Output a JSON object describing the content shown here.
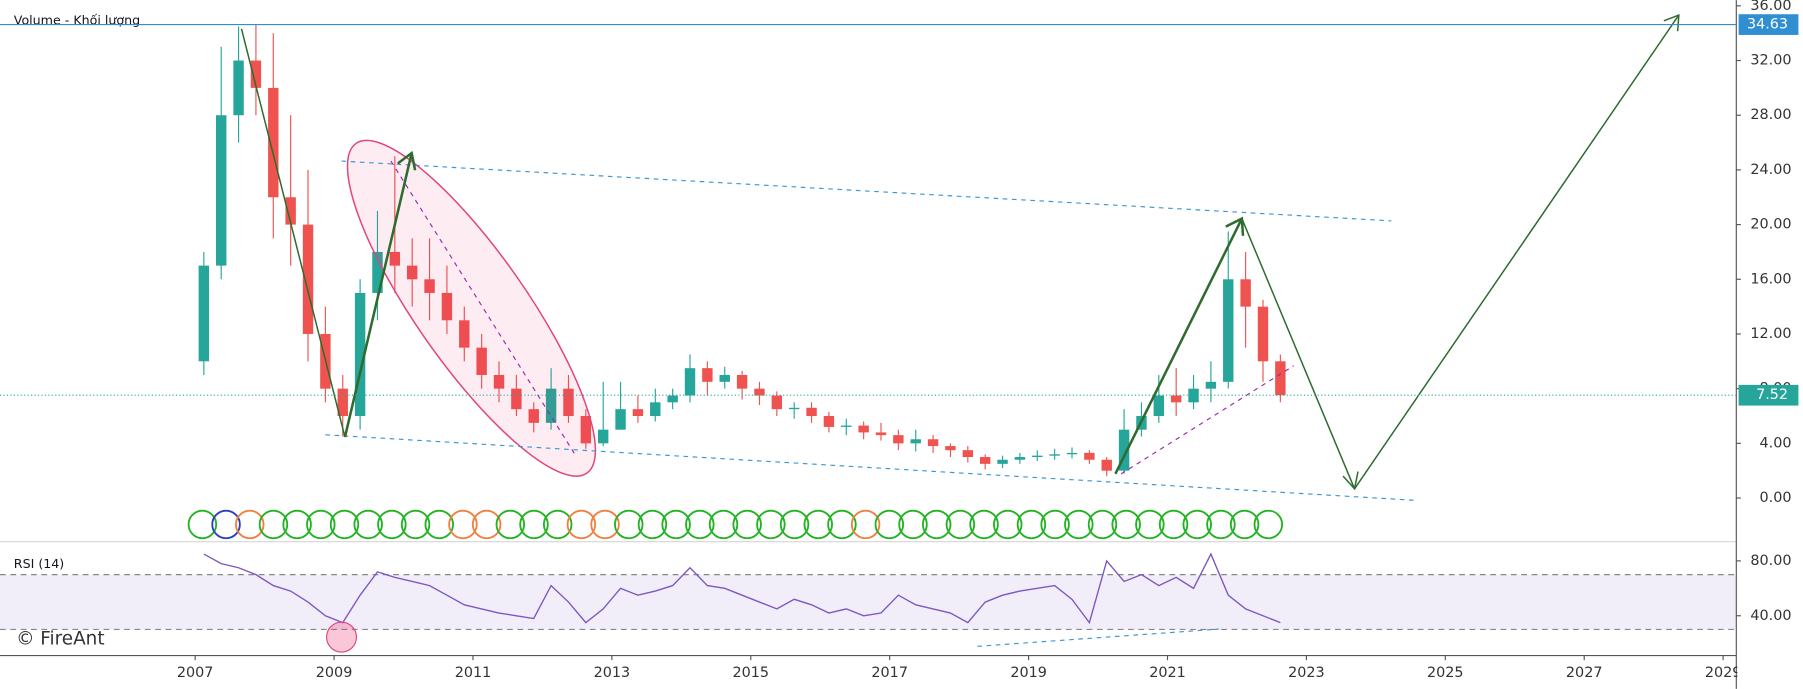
{
  "chart_data": [
    {
      "type": "candlestick",
      "title": "Volume - Khối lượng",
      "watermark": "© FireAnt",
      "xlim": [
        2004.19,
        2029.19
      ],
      "xticks": [
        2007,
        2009,
        2011,
        2013,
        2015,
        2017,
        2019,
        2021,
        2023,
        2025,
        2027,
        2029
      ],
      "ylim": [
        -3.11,
        36.42
      ],
      "yticks": [
        {
          "value": 0,
          "label": "0.00"
        },
        {
          "value": 4,
          "label": "4.00"
        },
        {
          "value": 8,
          "label": "8.00"
        },
        {
          "value": 12,
          "label": "12.00"
        },
        {
          "value": 16,
          "label": "16.00"
        },
        {
          "value": 20,
          "label": "20.00"
        },
        {
          "value": 24,
          "label": "24.00"
        },
        {
          "value": 28,
          "label": "28.00"
        },
        {
          "value": 32,
          "label": "32.00"
        },
        {
          "value": 36,
          "label": "36.00"
        }
      ],
      "up_color": "#26a69a",
      "down_color": "#ef5350",
      "price_lines": [
        {
          "value": 34.63,
          "color": "#2f8fd0"
        },
        {
          "value": 7.52,
          "color": "#26a69a"
        }
      ],
      "x": [
        2007,
        2007.25,
        2007.5,
        2007.75,
        2008,
        2008.25,
        2008.5,
        2008.75,
        2009,
        2009.25,
        2009.5,
        2009.75,
        2010,
        2010.25,
        2010.5,
        2010.75,
        2011,
        2011.25,
        2011.5,
        2011.75,
        2012,
        2012.25,
        2012.5,
        2012.75,
        2013,
        2013.25,
        2013.5,
        2013.75,
        2014,
        2014.25,
        2014.5,
        2014.75,
        2015,
        2015.25,
        2015.5,
        2015.75,
        2016,
        2016.25,
        2016.5,
        2016.75,
        2017,
        2017.25,
        2017.5,
        2017.75,
        2018,
        2018.25,
        2018.5,
        2018.75,
        2019,
        2019.25,
        2019.5,
        2019.75,
        2020,
        2020.25,
        2020.5,
        2020.75,
        2021,
        2021.25,
        2021.5,
        2021.75,
        2022,
        2022.25,
        2022.5
      ],
      "open": [
        10,
        17,
        28,
        32,
        30,
        22,
        20,
        12,
        8,
        6,
        15,
        18,
        17,
        16,
        15,
        13,
        11,
        9,
        8,
        6.5,
        5.5,
        8,
        6,
        4,
        5,
        6.5,
        6,
        7,
        7.5,
        9.5,
        8.5,
        9,
        8,
        7.5,
        6.5,
        6.6,
        6,
        5.2,
        5.3,
        4.8,
        4.6,
        4,
        4.3,
        3.8,
        3.5,
        3,
        2.5,
        2.8,
        3,
        3.1,
        3.2,
        3.3,
        2.8,
        2,
        5,
        6,
        7.5,
        7,
        8,
        8.5,
        16,
        14,
        10
      ],
      "high": [
        18,
        33,
        34.5,
        34.6,
        34,
        28,
        24,
        14,
        9,
        16,
        21,
        25,
        19,
        19,
        17,
        14,
        12,
        10,
        9,
        7,
        9.5,
        9,
        6.5,
        8.5,
        8.5,
        7.5,
        8,
        8,
        10.5,
        10,
        9.6,
        9.3,
        8.5,
        7.8,
        7,
        7,
        6.3,
        5.8,
        5.6,
        5.5,
        5,
        5,
        4.6,
        4,
        3.8,
        3.2,
        3.1,
        3.3,
        3.5,
        3.6,
        3.7,
        3.5,
        3,
        6.5,
        7,
        9,
        9.5,
        9,
        10,
        19.5,
        18,
        14.5,
        10.5
      ],
      "low": [
        9,
        16,
        26,
        28,
        19,
        17,
        10,
        7,
        4.5,
        5,
        13,
        15,
        14,
        13,
        12,
        10,
        8,
        7,
        6,
        4.8,
        5,
        5.5,
        3.6,
        3.8,
        5,
        5.5,
        5.6,
        6.5,
        7,
        7.5,
        8,
        7.2,
        6.8,
        6,
        5.8,
        5.5,
        4.8,
        4.6,
        4.3,
        4.2,
        3.5,
        3.4,
        3.3,
        3,
        2.6,
        2.1,
        2.2,
        2.5,
        2.7,
        2.8,
        2.9,
        2.5,
        1.6,
        1.8,
        4.5,
        5.5,
        6,
        6.5,
        7,
        8,
        11,
        8.5,
        7
      ],
      "close": [
        17,
        28,
        32,
        30,
        22,
        20,
        12,
        8,
        6,
        15,
        18,
        17,
        16,
        15,
        13,
        11,
        9,
        8,
        6.5,
        5.5,
        8,
        6,
        4,
        5,
        6.5,
        6,
        7,
        7.5,
        9.5,
        8.5,
        9,
        8,
        7.5,
        6.5,
        6.6,
        6,
        5.2,
        5.3,
        4.8,
        4.6,
        4,
        4.3,
        3.8,
        3.5,
        3,
        2.5,
        2.8,
        3,
        3.1,
        3.2,
        3.3,
        2.8,
        2,
        5,
        6,
        7.5,
        7,
        8,
        8.5,
        16,
        14,
        10,
        7.52
      ]
    },
    {
      "type": "line",
      "title": "RSI (14)",
      "ylim": [
        11,
        94
      ],
      "yticks": [
        {
          "value": 40,
          "label": "40.00"
        },
        {
          "value": 80,
          "label": "80.00"
        }
      ],
      "band": [
        30,
        70
      ],
      "color": "#7e57c2",
      "values": [
        85,
        78,
        75,
        70,
        62,
        58,
        50,
        40,
        35,
        55,
        72,
        68,
        65,
        62,
        55,
        48,
        45,
        42,
        40,
        38,
        62,
        50,
        35,
        45,
        60,
        55,
        58,
        62,
        75,
        62,
        60,
        55,
        50,
        45,
        52,
        48,
        42,
        45,
        40,
        42,
        55,
        48,
        45,
        42,
        35,
        50,
        55,
        58,
        60,
        62,
        52,
        35,
        80,
        65,
        70,
        62,
        68,
        60,
        85,
        55,
        45,
        40,
        35
      ]
    }
  ]
}
